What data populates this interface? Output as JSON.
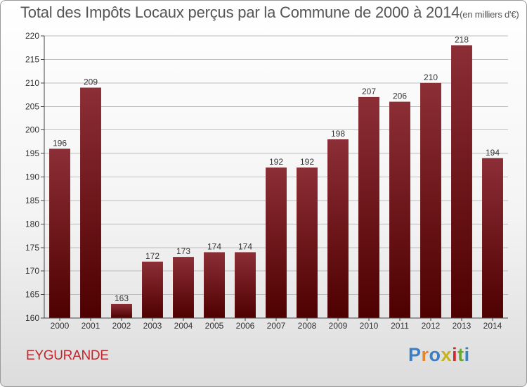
{
  "header": {
    "title": "Total des Impôts Locaux perçus par la Commune de 2000 à 2014",
    "unit": "(en milliers d'€)"
  },
  "footer": {
    "commune": "EYGURANDE",
    "logo": "Proxiti",
    "logo_colors": [
      "#3a7fc4",
      "#e8852a",
      "#3a7fc4",
      "#c8b21f",
      "#d6272d",
      "#6aa832",
      "#2e87c9"
    ]
  },
  "colors": {
    "bar_top": "#8c2e36",
    "bar_bottom": "#4e0000",
    "commune_text": "#c0272d"
  },
  "chart_data": {
    "type": "bar",
    "title": "Total des Impôts Locaux perçus par la Commune de 2000 à 2014",
    "categories": [
      "2000",
      "2001",
      "2002",
      "2003",
      "2004",
      "2005",
      "2006",
      "2007",
      "2008",
      "2009",
      "2010",
      "2011",
      "2012",
      "2013",
      "2014"
    ],
    "values": [
      196,
      209,
      163,
      172,
      173,
      174,
      174,
      192,
      192,
      198,
      207,
      206,
      210,
      218,
      194
    ],
    "ylim": [
      160,
      220
    ],
    "yticks": [
      160,
      165,
      170,
      175,
      180,
      185,
      190,
      195,
      200,
      205,
      210,
      215,
      220
    ],
    "grid": true,
    "legend": "none"
  }
}
